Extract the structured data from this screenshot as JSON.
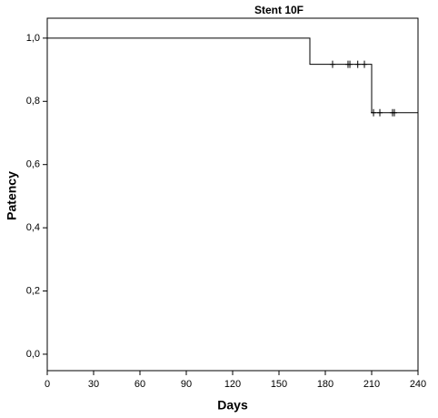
{
  "chart_data": {
    "type": "line",
    "title": "Stent 10F",
    "x_label": "Days",
    "y_label": "Patency",
    "step": "post",
    "series": [
      {
        "color": "#000000",
        "x": [
          0,
          170,
          210,
          240
        ],
        "values": [
          1.0,
          0.917,
          0.764,
          0.764
        ],
        "censored_x": [
          184.7,
          194.7,
          195.9,
          201,
          205.3,
          211.2,
          215.3,
          223.5,
          224.7
        ],
        "censored_values": [
          0.917,
          0.917,
          0.917,
          0.917,
          0.917,
          0.764,
          0.764,
          0.764,
          0.764
        ]
      }
    ],
    "xlim": [
      0,
      240
    ],
    "xticks": [
      0,
      30,
      60,
      90,
      120,
      150,
      180,
      210,
      240
    ],
    "ylim": [
      -0.052,
      1.063
    ],
    "yticks": [
      {
        "value": 0,
        "label": "0,0"
      },
      {
        "value": 0.2,
        "label": "0,2"
      },
      {
        "value": 0.4,
        "label": "0,4"
      },
      {
        "value": 0.6,
        "label": "0,6"
      },
      {
        "value": 0.8,
        "label": "0,8"
      },
      {
        "value": 1.0,
        "label": "1,0"
      }
    ]
  }
}
